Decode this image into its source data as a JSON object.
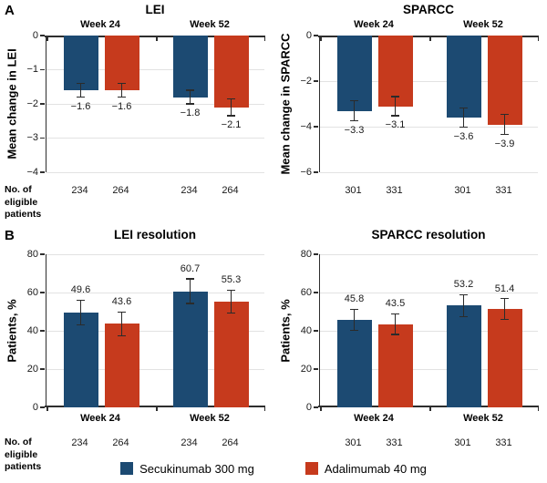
{
  "figure": {
    "panel_a_label": "A",
    "panel_b_label": "B",
    "patients_row_label": [
      "No. of",
      "eligible",
      "patients"
    ],
    "legend": [
      {
        "label": "Secukinumab 300 mg",
        "color": "#1c4a72"
      },
      {
        "label": "Adalimumab 40 mg",
        "color": "#c63a1d"
      }
    ]
  },
  "colors": {
    "secukinumab": "#1c4a72",
    "adalimumab": "#c63a1d",
    "grid": "#e2e2e2",
    "axis": "#2e2e2e",
    "error": "#2b2b2b"
  },
  "chart_data": [
    {
      "id": "lei-mean-change",
      "panel": "A",
      "type": "bar",
      "title": "LEI",
      "ylabel": "Mean change in LEI",
      "ylim": [
        -4,
        0
      ],
      "yticks": [
        0,
        -1,
        -2,
        -3,
        -4
      ],
      "ytick_labels": [
        "0",
        "−1",
        "−2",
        "−3",
        "−4"
      ],
      "categories": [
        "Week 24",
        "Week 52"
      ],
      "week_label_position": "top",
      "grid": true,
      "series": [
        {
          "key": "secukinumab",
          "name": "Secukinumab 300 mg",
          "color_key": "secukinumab",
          "values": [
            -1.6,
            -1.8
          ],
          "errors": [
            0.2,
            0.2
          ],
          "labels": [
            "−1.6",
            "−1.8"
          ]
        },
        {
          "key": "adalimumab",
          "name": "Adalimumab 40 mg",
          "color_key": "adalimumab",
          "values": [
            -1.6,
            -2.1
          ],
          "errors": [
            0.2,
            0.25
          ],
          "labels": [
            "−1.6",
            "−2.1"
          ]
        }
      ],
      "eligible_patients": [
        "234",
        "264",
        "234",
        "264"
      ],
      "show_patients_label": true
    },
    {
      "id": "sparcc-mean-change",
      "panel": "A",
      "type": "bar",
      "title": "SPARCC",
      "ylabel": "Mean change in SPARCC",
      "ylim": [
        -6,
        0
      ],
      "yticks": [
        0,
        -2,
        -4,
        -6
      ],
      "ytick_labels": [
        "0",
        "−2",
        "−4",
        "−6"
      ],
      "categories": [
        "Week 24",
        "Week 52"
      ],
      "week_label_position": "top",
      "grid": true,
      "series": [
        {
          "key": "secukinumab",
          "name": "Secukinumab 300 mg",
          "color_key": "secukinumab",
          "values": [
            -3.3,
            -3.6
          ],
          "errors": [
            0.45,
            0.42
          ],
          "labels": [
            "−3.3",
            "−3.6"
          ]
        },
        {
          "key": "adalimumab",
          "name": "Adalimumab 40 mg",
          "color_key": "adalimumab",
          "values": [
            -3.1,
            -3.9
          ],
          "errors": [
            0.42,
            0.45
          ],
          "labels": [
            "−3.1",
            "−3.9"
          ]
        }
      ],
      "eligible_patients": [
        "301",
        "331",
        "301",
        "331"
      ],
      "show_patients_label": false
    },
    {
      "id": "lei-resolution",
      "panel": "B",
      "type": "bar",
      "title": "LEI resolution",
      "ylabel": "Patients, %",
      "ylim": [
        0,
        80
      ],
      "yticks": [
        0,
        20,
        40,
        60,
        80
      ],
      "ytick_labels": [
        "0",
        "20",
        "40",
        "60",
        "80"
      ],
      "categories": [
        "Week 24",
        "Week 52"
      ],
      "week_label_position": "bottom",
      "grid": true,
      "series": [
        {
          "key": "secukinumab",
          "name": "Secukinumab 300 mg",
          "color_key": "secukinumab",
          "values": [
            49.6,
            60.7
          ],
          "errors": [
            6.4,
            6.4
          ],
          "labels": [
            "49.6",
            "60.7"
          ]
        },
        {
          "key": "adalimumab",
          "name": "Adalimumab 40 mg",
          "color_key": "adalimumab",
          "values": [
            43.6,
            55.3
          ],
          "errors": [
            6.2,
            6.0
          ],
          "labels": [
            "43.6",
            "55.3"
          ]
        }
      ],
      "eligible_patients": [
        "234",
        "264",
        "234",
        "264"
      ],
      "show_patients_label": true
    },
    {
      "id": "sparcc-resolution",
      "panel": "B",
      "type": "bar",
      "title": "SPARCC resolution",
      "ylabel": "Patients, %",
      "ylim": [
        0,
        80
      ],
      "yticks": [
        0,
        20,
        40,
        60,
        80
      ],
      "ytick_labels": [
        "0",
        "20",
        "40",
        "60",
        "80"
      ],
      "categories": [
        "Week 24",
        "Week 52"
      ],
      "week_label_position": "bottom",
      "grid": true,
      "series": [
        {
          "key": "secukinumab",
          "name": "Secukinumab 300 mg",
          "color_key": "secukinumab",
          "values": [
            45.8,
            53.2
          ],
          "errors": [
            5.5,
            5.7
          ],
          "labels": [
            "45.8",
            "53.2"
          ]
        },
        {
          "key": "adalimumab",
          "name": "Adalimumab 40 mg",
          "color_key": "adalimumab",
          "values": [
            43.5,
            51.4
          ],
          "errors": [
            5.4,
            5.4
          ],
          "labels": [
            "43.5",
            "51.4"
          ]
        }
      ],
      "eligible_patients": [
        "301",
        "331",
        "301",
        "331"
      ],
      "show_patients_label": false
    }
  ]
}
